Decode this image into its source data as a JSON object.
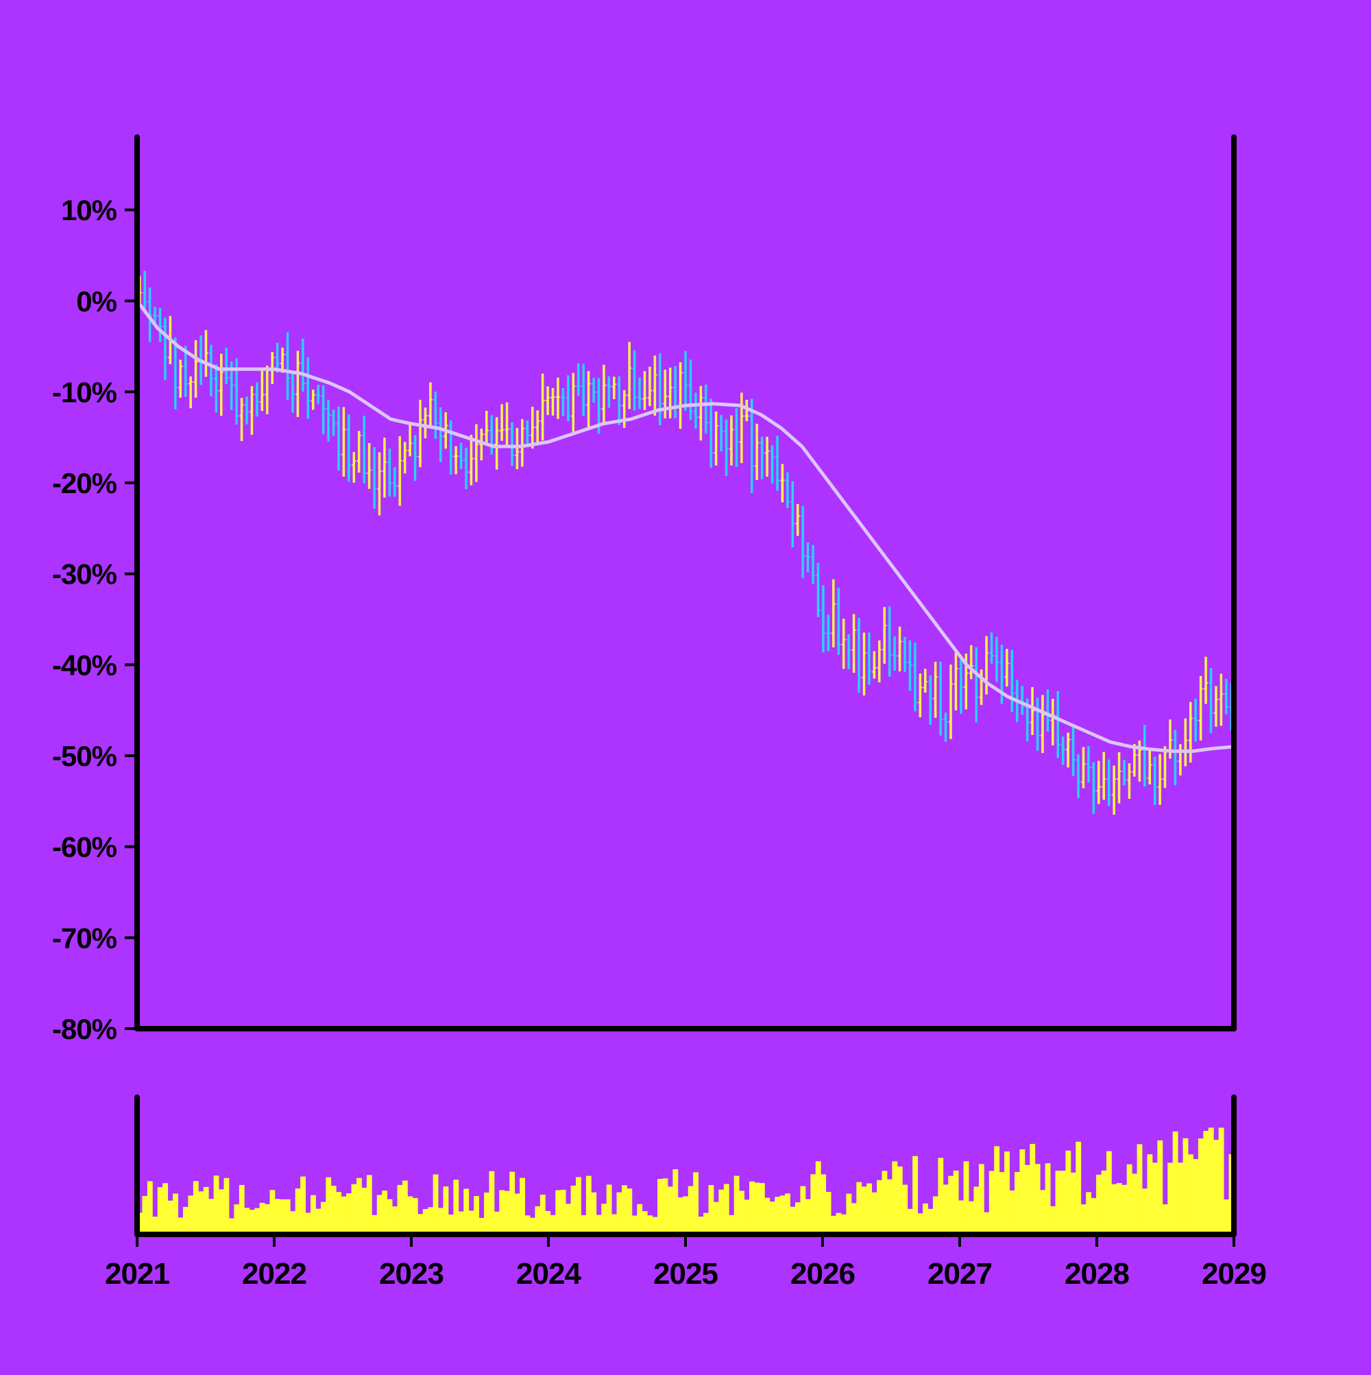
{
  "chart_data": {
    "type": "ohlc",
    "title": "",
    "xlabel": "",
    "ylabel": "",
    "x_range": [
      2021.0,
      2029.0
    ],
    "x_ticks": [
      "2021",
      "2022",
      "2023",
      "2024",
      "2025",
      "2026",
      "2027",
      "2028",
      "2029"
    ],
    "ylim": [
      -80,
      18
    ],
    "y_ticks": [
      10,
      0,
      -10,
      -20,
      -30,
      -40,
      -50,
      -60,
      -70,
      -80
    ],
    "y_tick_labels": [
      "10%",
      "0%",
      "-10%",
      "-20%",
      "-30%",
      "-40%",
      "-50%",
      "-60%",
      "-70%",
      "-80%"
    ],
    "y_unit": "%",
    "grid": false,
    "legend": "none",
    "colors": {
      "background": "#ad33fe",
      "up": "#fff04a",
      "down": "#26d2ff",
      "moving_average": "#dcc6f5",
      "volume": "#ffff33",
      "axis": "#000000"
    },
    "price_path": [
      [
        2021.0,
        0.5
      ],
      [
        2021.1,
        -3
      ],
      [
        2021.2,
        -5
      ],
      [
        2021.35,
        -9
      ],
      [
        2021.5,
        -8
      ],
      [
        2021.62,
        -10
      ],
      [
        2021.75,
        -12
      ],
      [
        2021.85,
        -11
      ],
      [
        2021.95,
        -8
      ],
      [
        2022.05,
        -7
      ],
      [
        2022.15,
        -8
      ],
      [
        2022.25,
        -9
      ],
      [
        2022.35,
        -12
      ],
      [
        2022.45,
        -15
      ],
      [
        2022.6,
        -17
      ],
      [
        2022.75,
        -19
      ],
      [
        2022.85,
        -20
      ],
      [
        2022.95,
        -18
      ],
      [
        2023.05,
        -14
      ],
      [
        2023.15,
        -13
      ],
      [
        2023.25,
        -16
      ],
      [
        2023.35,
        -18
      ],
      [
        2023.45,
        -17
      ],
      [
        2023.55,
        -14
      ],
      [
        2023.65,
        -12
      ],
      [
        2023.75,
        -15
      ],
      [
        2023.85,
        -16
      ],
      [
        2023.95,
        -12
      ],
      [
        2024.1,
        -11
      ],
      [
        2024.25,
        -10
      ],
      [
        2024.4,
        -11
      ],
      [
        2024.55,
        -9
      ],
      [
        2024.65,
        -8
      ],
      [
        2024.75,
        -10
      ],
      [
        2024.85,
        -12
      ],
      [
        2024.95,
        -10
      ],
      [
        2025.05,
        -11
      ],
      [
        2025.15,
        -14
      ],
      [
        2025.3,
        -15
      ],
      [
        2025.4,
        -14
      ],
      [
        2025.5,
        -16
      ],
      [
        2025.6,
        -19
      ],
      [
        2025.7,
        -21
      ],
      [
        2025.8,
        -25
      ],
      [
        2025.9,
        -30
      ],
      [
        2026.0,
        -34
      ],
      [
        2026.1,
        -35
      ],
      [
        2026.2,
        -37
      ],
      [
        2026.3,
        -40
      ],
      [
        2026.4,
        -39
      ],
      [
        2026.5,
        -37
      ],
      [
        2026.6,
        -41
      ],
      [
        2026.7,
        -42
      ],
      [
        2026.8,
        -43
      ],
      [
        2026.9,
        -44
      ],
      [
        2027.0,
        -42
      ],
      [
        2027.1,
        -42
      ],
      [
        2027.2,
        -41
      ],
      [
        2027.3,
        -41
      ],
      [
        2027.4,
        -44
      ],
      [
        2027.5,
        -45
      ],
      [
        2027.6,
        -46
      ],
      [
        2027.7,
        -47
      ],
      [
        2027.8,
        -50
      ],
      [
        2027.9,
        -53
      ],
      [
        2028.0,
        -53
      ],
      [
        2028.1,
        -52
      ],
      [
        2028.2,
        -53
      ],
      [
        2028.3,
        -51
      ],
      [
        2028.4,
        -52
      ],
      [
        2028.5,
        -51
      ],
      [
        2028.6,
        -49
      ],
      [
        2028.7,
        -46
      ],
      [
        2028.8,
        -44
      ],
      [
        2028.9,
        -43
      ],
      [
        2029.0,
        -44
      ]
    ],
    "moving_average": [
      [
        2021.0,
        0
      ],
      [
        2021.15,
        -3
      ],
      [
        2021.3,
        -5
      ],
      [
        2021.45,
        -6.5
      ],
      [
        2021.6,
        -7.5
      ],
      [
        2021.8,
        -7.5
      ],
      [
        2022.0,
        -7.5
      ],
      [
        2022.2,
        -8
      ],
      [
        2022.4,
        -9
      ],
      [
        2022.55,
        -10
      ],
      [
        2022.7,
        -11.5
      ],
      [
        2022.85,
        -13
      ],
      [
        2023.0,
        -13.5
      ],
      [
        2023.2,
        -14
      ],
      [
        2023.4,
        -15
      ],
      [
        2023.6,
        -16
      ],
      [
        2023.8,
        -16
      ],
      [
        2024.0,
        -15.5
      ],
      [
        2024.2,
        -14.5
      ],
      [
        2024.4,
        -13.5
      ],
      [
        2024.6,
        -13
      ],
      [
        2024.8,
        -12
      ],
      [
        2025.0,
        -11.5
      ],
      [
        2025.2,
        -11.3
      ],
      [
        2025.4,
        -11.5
      ],
      [
        2025.55,
        -12.5
      ],
      [
        2025.7,
        -14
      ],
      [
        2025.85,
        -16
      ],
      [
        2026.0,
        -19
      ],
      [
        2026.15,
        -22
      ],
      [
        2026.3,
        -25
      ],
      [
        2026.45,
        -28
      ],
      [
        2026.6,
        -31
      ],
      [
        2026.75,
        -34
      ],
      [
        2026.9,
        -37
      ],
      [
        2027.05,
        -40
      ],
      [
        2027.2,
        -42
      ],
      [
        2027.35,
        -43.5
      ],
      [
        2027.5,
        -44.5
      ],
      [
        2027.65,
        -45.5
      ],
      [
        2027.8,
        -46.5
      ],
      [
        2027.95,
        -47.5
      ],
      [
        2028.1,
        -48.5
      ],
      [
        2028.25,
        -49
      ],
      [
        2028.4,
        -49.3
      ],
      [
        2028.55,
        -49.5
      ],
      [
        2028.7,
        -49.5
      ],
      [
        2028.85,
        -49.2
      ],
      [
        2029.0,
        -49
      ]
    ],
    "bar_count": 215,
    "volume_scale": [
      0,
      100
    ],
    "volume_trend": [
      [
        2021.0,
        30
      ],
      [
        2025.0,
        33
      ],
      [
        2026.0,
        38
      ],
      [
        2029.0,
        55
      ]
    ]
  }
}
